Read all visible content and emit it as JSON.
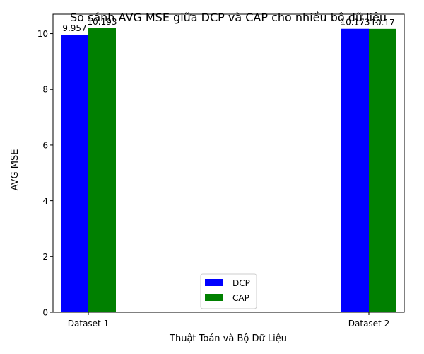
{
  "chart_data": {
    "type": "bar",
    "title": "So sánh AVG MSE giữa DCP và CAP cho nhiều bộ dữ liệu",
    "xlabel": "Thuật Toán và Bộ Dữ Liệu",
    "ylabel": "AVG MSE",
    "categories": [
      "Dataset 1",
      "Dataset 2"
    ],
    "series": [
      {
        "name": "DCP",
        "color": "#0000ff",
        "values": [
          9.957,
          10.173
        ],
        "labels": [
          "9.957",
          "10.173"
        ]
      },
      {
        "name": "CAP",
        "color": "#008000",
        "values": [
          10.193,
          10.17
        ],
        "labels": [
          "10.193",
          "10.17"
        ]
      }
    ],
    "ylim": [
      0,
      10.7
    ],
    "yticks": [
      0,
      2,
      4,
      6,
      8,
      10
    ],
    "grid": false,
    "legend_position": "bottom-center"
  }
}
